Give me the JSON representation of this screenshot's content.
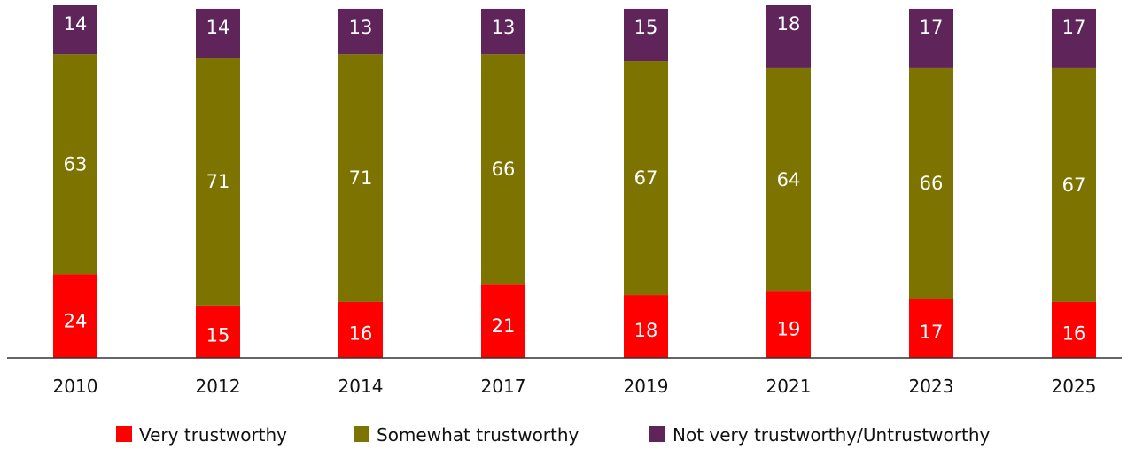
{
  "colors": {
    "very": "#fe0000",
    "somewhat": "#7c7300",
    "not": "#5f2459",
    "axis": "#333333"
  },
  "chart_data": {
    "type": "bar",
    "stacked": true,
    "categories": [
      "2010",
      "2012",
      "2014",
      "2017",
      "2019",
      "2021",
      "2023",
      "2025"
    ],
    "series": [
      {
        "name": "Very trustworthy",
        "color_key": "very",
        "values": [
          24,
          15,
          16,
          21,
          18,
          19,
          17,
          16
        ]
      },
      {
        "name": "Somewhat trustworthy",
        "color_key": "somewhat",
        "values": [
          63,
          71,
          71,
          66,
          67,
          64,
          66,
          67
        ]
      },
      {
        "name": "Not very trustworthy/Untrustworthy",
        "color_key": "not",
        "values": [
          14,
          14,
          13,
          13,
          15,
          18,
          17,
          17
        ]
      }
    ],
    "ylim": [
      0,
      101
    ],
    "grid": false,
    "legend_position": "bottom"
  }
}
